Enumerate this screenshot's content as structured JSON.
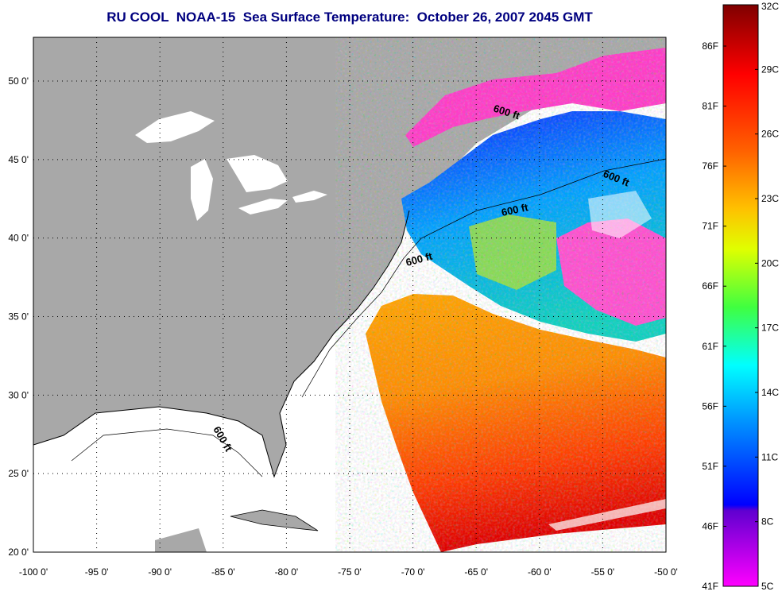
{
  "title": "RU COOL  NOAA-15  Sea Surface Temperature:  October 26, 2007 2045 GMT",
  "longitude_labels": [
    "-100 0'",
    "-95 0'",
    "-90 0'",
    "-85 0'",
    "-80 0'",
    "-75 0'",
    "-70 0'",
    "-65 0'",
    "-60 0'",
    "-55 0'",
    "-50 0'"
  ],
  "latitude_labels": [
    "50 0'",
    "45 0'",
    "40 0'",
    "35 0'",
    "30 0'",
    "25 0'",
    "20 0'"
  ],
  "contour_labels": [
    "600 ft",
    "600 ft",
    "600 ft",
    "600 ft",
    "600 ft"
  ],
  "colorbar": {
    "celsius_labels": [
      "32C",
      "29C",
      "26C",
      "23C",
      "20C",
      "17C",
      "14C",
      "11C",
      "8C",
      "5C"
    ],
    "fahrenheit_labels": [
      "86F",
      "81F",
      "76F",
      "71F",
      "66F",
      "61F",
      "56F",
      "51F",
      "46F",
      "41F"
    ]
  },
  "colors": {
    "land": "#a8a8a8",
    "title": "#00007f",
    "no_data": "#ffffff"
  }
}
